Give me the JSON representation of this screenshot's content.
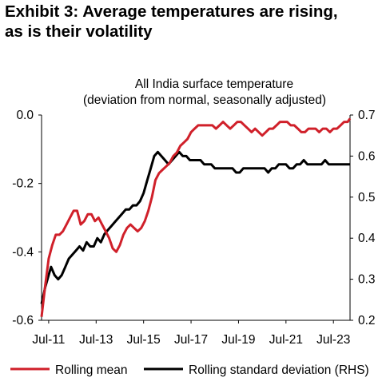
{
  "exhibit": {
    "title_line1": "Exhibit 3: Average temperatures are rising,",
    "title_line2": "as is their volatility"
  },
  "chart_data": {
    "type": "line",
    "title": "All India surface temperature",
    "subtitle": "(deviation from normal, seasonally adjusted)",
    "x_tick_labels": [
      "Jul-11",
      "Jul-13",
      "Jul-15",
      "Jul-17",
      "Jul-19",
      "Jul-21",
      "Jul-23"
    ],
    "x_tick_years": [
      2011.5,
      2013.5,
      2015.5,
      2017.5,
      2019.5,
      2021.5,
      2023.5
    ],
    "xlim": [
      2011.2,
      2024.2
    ],
    "left_axis": {
      "ylim": [
        -0.6,
        0.0
      ],
      "ticks": [
        -0.6,
        -0.4,
        -0.2,
        0.0
      ],
      "tick_labels": [
        "-0.6",
        "-0.4",
        "-0.2",
        "0.0"
      ]
    },
    "right_axis": {
      "ylim": [
        0.2,
        0.7
      ],
      "ticks": [
        0.2,
        0.3,
        0.4,
        0.5,
        0.6,
        0.7
      ],
      "tick_labels": [
        "0.2",
        "0.3",
        "0.4",
        "0.5",
        "0.6",
        "0.7"
      ]
    },
    "grid": false,
    "legend_position": "bottom",
    "series": [
      {
        "name": "Rolling mean",
        "axis": "left",
        "color": "#d0202a",
        "points": [
          [
            2011.2,
            -0.59
          ],
          [
            2011.35,
            -0.5
          ],
          [
            2011.5,
            -0.42
          ],
          [
            2011.65,
            -0.38
          ],
          [
            2011.8,
            -0.35
          ],
          [
            2011.95,
            -0.35
          ],
          [
            2012.1,
            -0.34
          ],
          [
            2012.25,
            -0.32
          ],
          [
            2012.4,
            -0.3
          ],
          [
            2012.55,
            -0.28
          ],
          [
            2012.7,
            -0.28
          ],
          [
            2012.85,
            -0.32
          ],
          [
            2013.0,
            -0.31
          ],
          [
            2013.15,
            -0.29
          ],
          [
            2013.3,
            -0.29
          ],
          [
            2013.45,
            -0.31
          ],
          [
            2013.6,
            -0.3
          ],
          [
            2013.75,
            -0.32
          ],
          [
            2013.9,
            -0.34
          ],
          [
            2014.05,
            -0.36
          ],
          [
            2014.2,
            -0.39
          ],
          [
            2014.35,
            -0.4
          ],
          [
            2014.5,
            -0.38
          ],
          [
            2014.65,
            -0.35
          ],
          [
            2014.8,
            -0.33
          ],
          [
            2014.95,
            -0.32
          ],
          [
            2015.1,
            -0.33
          ],
          [
            2015.25,
            -0.34
          ],
          [
            2015.4,
            -0.33
          ],
          [
            2015.55,
            -0.31
          ],
          [
            2015.7,
            -0.28
          ],
          [
            2015.85,
            -0.24
          ],
          [
            2016.0,
            -0.19
          ],
          [
            2016.15,
            -0.17
          ],
          [
            2016.3,
            -0.16
          ],
          [
            2016.45,
            -0.15
          ],
          [
            2016.6,
            -0.14
          ],
          [
            2016.75,
            -0.12
          ],
          [
            2016.9,
            -0.11
          ],
          [
            2017.05,
            -0.09
          ],
          [
            2017.2,
            -0.08
          ],
          [
            2017.35,
            -0.07
          ],
          [
            2017.5,
            -0.05
          ],
          [
            2017.65,
            -0.04
          ],
          [
            2017.8,
            -0.03
          ],
          [
            2017.95,
            -0.03
          ],
          [
            2018.1,
            -0.03
          ],
          [
            2018.25,
            -0.03
          ],
          [
            2018.4,
            -0.03
          ],
          [
            2018.55,
            -0.04
          ],
          [
            2018.7,
            -0.03
          ],
          [
            2018.85,
            -0.02
          ],
          [
            2019.0,
            -0.03
          ],
          [
            2019.15,
            -0.04
          ],
          [
            2019.3,
            -0.03
          ],
          [
            2019.45,
            -0.02
          ],
          [
            2019.6,
            -0.02
          ],
          [
            2019.75,
            -0.03
          ],
          [
            2019.9,
            -0.04
          ],
          [
            2020.05,
            -0.05
          ],
          [
            2020.2,
            -0.04
          ],
          [
            2020.35,
            -0.05
          ],
          [
            2020.5,
            -0.06
          ],
          [
            2020.65,
            -0.05
          ],
          [
            2020.8,
            -0.04
          ],
          [
            2020.95,
            -0.04
          ],
          [
            2021.1,
            -0.03
          ],
          [
            2021.25,
            -0.02
          ],
          [
            2021.4,
            -0.02
          ],
          [
            2021.55,
            -0.02
          ],
          [
            2021.7,
            -0.03
          ],
          [
            2021.85,
            -0.03
          ],
          [
            2022.0,
            -0.04
          ],
          [
            2022.15,
            -0.05
          ],
          [
            2022.3,
            -0.05
          ],
          [
            2022.45,
            -0.04
          ],
          [
            2022.6,
            -0.04
          ],
          [
            2022.75,
            -0.04
          ],
          [
            2022.9,
            -0.05
          ],
          [
            2023.05,
            -0.04
          ],
          [
            2023.2,
            -0.04
          ],
          [
            2023.35,
            -0.05
          ],
          [
            2023.5,
            -0.04
          ],
          [
            2023.65,
            -0.04
          ],
          [
            2023.8,
            -0.03
          ],
          [
            2023.95,
            -0.02
          ],
          [
            2024.1,
            -0.02
          ],
          [
            2024.2,
            -0.01
          ]
        ]
      },
      {
        "name": "Rolling standard deviation (RHS)",
        "axis": "right",
        "color": "#000000",
        "points": [
          [
            2011.2,
            0.24
          ],
          [
            2011.35,
            0.28
          ],
          [
            2011.5,
            0.31
          ],
          [
            2011.6,
            0.33
          ],
          [
            2011.75,
            0.31
          ],
          [
            2011.9,
            0.3
          ],
          [
            2012.05,
            0.31
          ],
          [
            2012.2,
            0.33
          ],
          [
            2012.35,
            0.35
          ],
          [
            2012.5,
            0.36
          ],
          [
            2012.65,
            0.37
          ],
          [
            2012.8,
            0.38
          ],
          [
            2012.95,
            0.37
          ],
          [
            2013.1,
            0.39
          ],
          [
            2013.25,
            0.38
          ],
          [
            2013.4,
            0.38
          ],
          [
            2013.55,
            0.4
          ],
          [
            2013.7,
            0.39
          ],
          [
            2013.85,
            0.41
          ],
          [
            2014.0,
            0.42
          ],
          [
            2014.15,
            0.43
          ],
          [
            2014.3,
            0.44
          ],
          [
            2014.45,
            0.45
          ],
          [
            2014.6,
            0.46
          ],
          [
            2014.75,
            0.47
          ],
          [
            2014.9,
            0.47
          ],
          [
            2015.05,
            0.48
          ],
          [
            2015.2,
            0.48
          ],
          [
            2015.35,
            0.49
          ],
          [
            2015.5,
            0.51
          ],
          [
            2015.65,
            0.54
          ],
          [
            2015.8,
            0.57
          ],
          [
            2015.95,
            0.6
          ],
          [
            2016.1,
            0.61
          ],
          [
            2016.25,
            0.6
          ],
          [
            2016.4,
            0.59
          ],
          [
            2016.55,
            0.58
          ],
          [
            2016.7,
            0.59
          ],
          [
            2016.85,
            0.6
          ],
          [
            2017.0,
            0.61
          ],
          [
            2017.15,
            0.6
          ],
          [
            2017.3,
            0.6
          ],
          [
            2017.45,
            0.59
          ],
          [
            2017.6,
            0.59
          ],
          [
            2017.75,
            0.59
          ],
          [
            2017.9,
            0.59
          ],
          [
            2018.05,
            0.58
          ],
          [
            2018.2,
            0.58
          ],
          [
            2018.35,
            0.58
          ],
          [
            2018.5,
            0.57
          ],
          [
            2018.65,
            0.57
          ],
          [
            2018.8,
            0.57
          ],
          [
            2018.95,
            0.57
          ],
          [
            2019.1,
            0.57
          ],
          [
            2019.25,
            0.57
          ],
          [
            2019.4,
            0.56
          ],
          [
            2019.55,
            0.56
          ],
          [
            2019.7,
            0.57
          ],
          [
            2019.85,
            0.57
          ],
          [
            2020.0,
            0.57
          ],
          [
            2020.15,
            0.57
          ],
          [
            2020.3,
            0.57
          ],
          [
            2020.45,
            0.57
          ],
          [
            2020.6,
            0.57
          ],
          [
            2020.75,
            0.56
          ],
          [
            2020.9,
            0.57
          ],
          [
            2021.05,
            0.57
          ],
          [
            2021.2,
            0.58
          ],
          [
            2021.35,
            0.58
          ],
          [
            2021.5,
            0.58
          ],
          [
            2021.65,
            0.57
          ],
          [
            2021.8,
            0.57
          ],
          [
            2021.95,
            0.58
          ],
          [
            2022.1,
            0.58
          ],
          [
            2022.25,
            0.59
          ],
          [
            2022.4,
            0.58
          ],
          [
            2022.55,
            0.58
          ],
          [
            2022.7,
            0.58
          ],
          [
            2022.85,
            0.58
          ],
          [
            2023.0,
            0.58
          ],
          [
            2023.15,
            0.59
          ],
          [
            2023.3,
            0.58
          ],
          [
            2023.45,
            0.58
          ],
          [
            2023.6,
            0.58
          ],
          [
            2023.75,
            0.58
          ],
          [
            2023.9,
            0.58
          ],
          [
            2024.05,
            0.58
          ],
          [
            2024.2,
            0.58
          ]
        ]
      }
    ]
  }
}
